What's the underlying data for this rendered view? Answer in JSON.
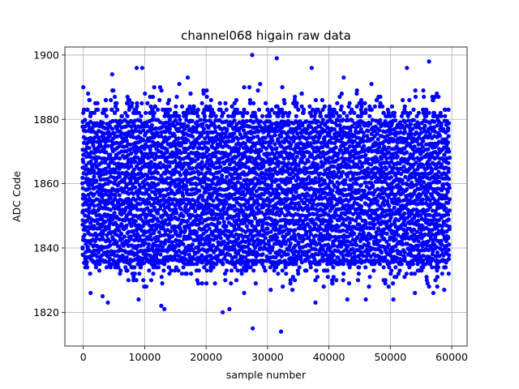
{
  "chart_data": {
    "type": "scatter",
    "title": "channel068 higain raw data",
    "xlabel": "sample number",
    "ylabel": "ADC Code",
    "xlim": [
      -3000,
      62500
    ],
    "ylim": [
      1809.5,
      1902.5
    ],
    "xticks": [
      0,
      10000,
      20000,
      30000,
      40000,
      50000,
      60000
    ],
    "xtick_labels": [
      "0",
      "10000",
      "20000",
      "30000",
      "40000",
      "50000",
      "60000"
    ],
    "yticks": [
      1820,
      1840,
      1860,
      1880,
      1900
    ],
    "ytick_labels": [
      "1820",
      "1840",
      "1860",
      "1880",
      "1900"
    ],
    "grid": true,
    "marker_color": "#0000ff",
    "series": [
      {
        "x_range": [
          0,
          59500
        ],
        "dense_band": [
          1835,
          1882
        ],
        "points": [
          {
            "x": 27500,
            "y": 1900
          },
          {
            "x": 31500,
            "y": 1899
          },
          {
            "x": 56300,
            "y": 1898
          },
          {
            "x": 8700,
            "y": 1896
          },
          {
            "x": 9600,
            "y": 1896
          },
          {
            "x": 37200,
            "y": 1896
          },
          {
            "x": 52700,
            "y": 1896
          },
          {
            "x": 4700,
            "y": 1894
          },
          {
            "x": 17000,
            "y": 1893
          },
          {
            "x": 42400,
            "y": 1893
          },
          {
            "x": 0,
            "y": 1890
          },
          {
            "x": 12500,
            "y": 1890
          },
          {
            "x": 26200,
            "y": 1890
          },
          {
            "x": 28800,
            "y": 1891
          },
          {
            "x": 4000,
            "y": 1823
          },
          {
            "x": 9000,
            "y": 1824
          },
          {
            "x": 12700,
            "y": 1822
          },
          {
            "x": 13200,
            "y": 1821
          },
          {
            "x": 22700,
            "y": 1820
          },
          {
            "x": 23800,
            "y": 1821
          },
          {
            "x": 27600,
            "y": 1815
          },
          {
            "x": 32200,
            "y": 1814
          },
          {
            "x": 37800,
            "y": 1823
          },
          {
            "x": 43000,
            "y": 1824
          },
          {
            "x": 46000,
            "y": 1824
          },
          {
            "x": 50500,
            "y": 1824
          },
          {
            "x": 54000,
            "y": 1826
          },
          {
            "x": 57000,
            "y": 1826
          }
        ]
      }
    ]
  }
}
